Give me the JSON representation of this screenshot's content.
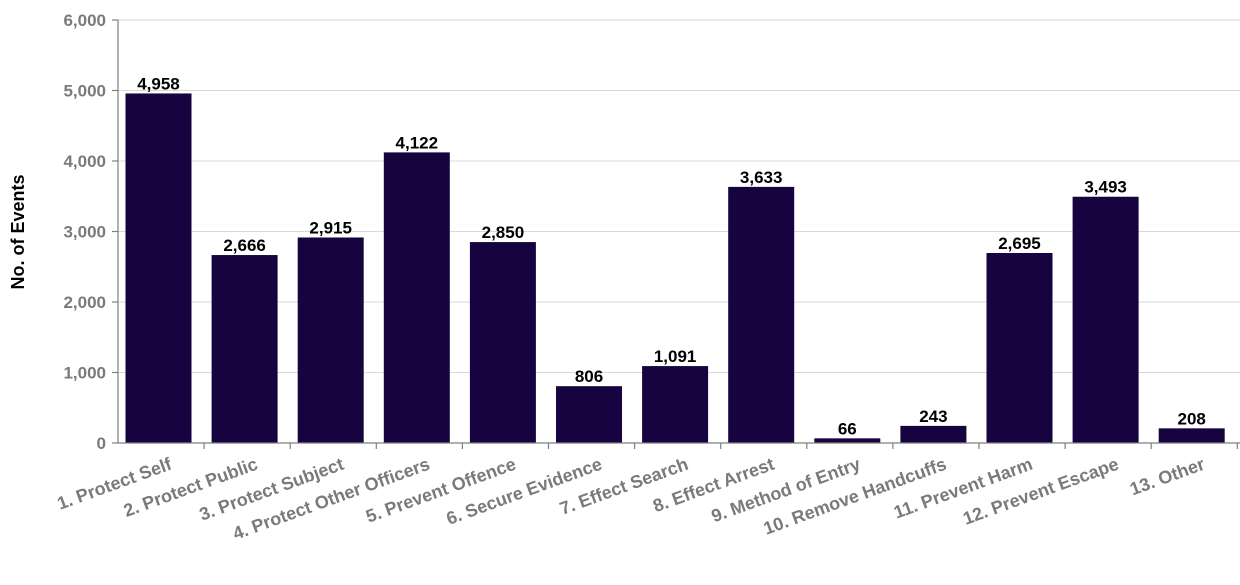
{
  "chart_data": {
    "type": "bar",
    "categories": [
      "1. Protect Self",
      "2. Protect Public",
      "3. Protect Subject",
      "4. Protect Other Officers",
      "5. Prevent Offence",
      "6. Secure Evidence",
      "7. Effect Search",
      "8. Effect Arrest",
      "9. Method of Entry",
      "10. Remove Handcuffs",
      "11. Prevent Harm",
      "12. Prevent Escape",
      "13. Other"
    ],
    "values": [
      4958,
      2666,
      2915,
      4122,
      2850,
      806,
      1091,
      3633,
      66,
      243,
      2695,
      3493,
      208
    ],
    "data_labels": [
      "4,958",
      "2,666",
      "2,915",
      "4,122",
      "2,850",
      "806",
      "1,091",
      "3,633",
      "66",
      "243",
      "2,695",
      "3,493",
      "208"
    ],
    "ylabel": "No. of Events",
    "ylim": [
      0,
      6000
    ],
    "yticks": [
      0,
      1000,
      2000,
      3000,
      4000,
      5000,
      6000
    ],
    "ytick_labels": [
      "0",
      "1,000",
      "2,000",
      "3,000",
      "4,000",
      "5,000",
      "6,000"
    ],
    "grid": true,
    "legend": "none",
    "colors": {
      "bar": "#160340",
      "gridline": "#d9d9d9",
      "axis": "#7f7f7f",
      "tick_label": "#7a7a7a"
    }
  }
}
